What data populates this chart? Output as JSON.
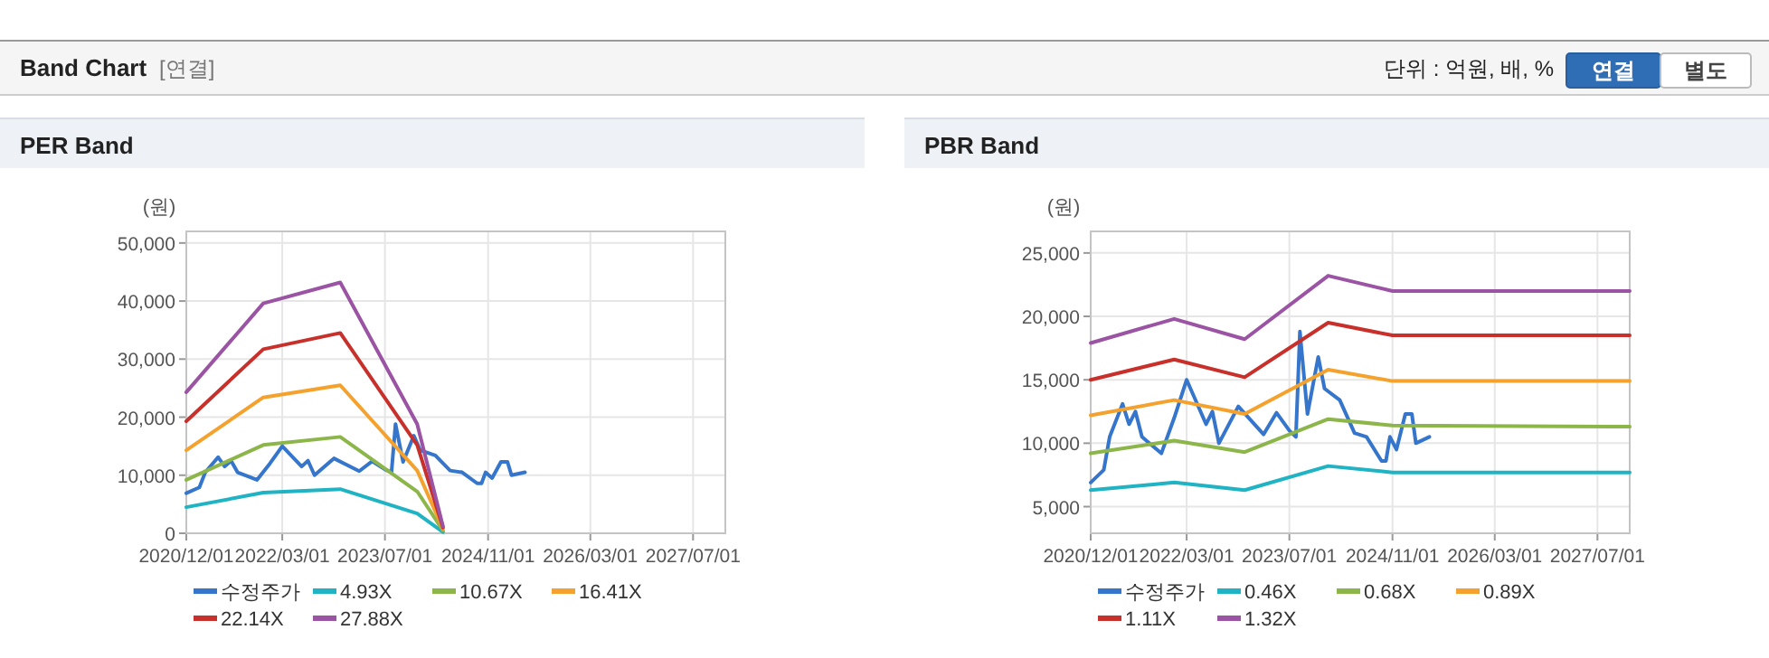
{
  "chart_data": [
    {
      "type": "line",
      "title": "PER Band",
      "ylabel": "(원)",
      "annotations": [
        "Band Chart",
        "[연결]",
        "단위 : 억원, 배, %",
        "연결",
        "별도"
      ],
      "xlim": [
        "2020-12-01",
        "2027-12-01"
      ],
      "xticks": [
        {
          "value": "2020-12-01",
          "label": "2020/12/01"
        },
        {
          "value": "2022-03-01",
          "label": "2022/03/01"
        },
        {
          "value": "2023-07-01",
          "label": "2023/07/01"
        },
        {
          "value": "2024-11-01",
          "label": "2024/11/01"
        },
        {
          "value": "2026-03-01",
          "label": "2026/03/01"
        },
        {
          "value": "2027-07-01",
          "label": "2027/07/01"
        }
      ],
      "ylim": [
        0,
        52000
      ],
      "yticks": [
        {
          "value": 0,
          "label": "0"
        },
        {
          "value": 10000,
          "label": "10,000"
        },
        {
          "value": 20000,
          "label": "20,000"
        },
        {
          "value": 30000,
          "label": "30,000"
        },
        {
          "value": 40000,
          "label": "40,000"
        },
        {
          "value": 50000,
          "label": "50,000"
        }
      ],
      "grid": true,
      "legend": "bottom",
      "series": [
        {
          "name": "수정주가",
          "color": "#3576cc",
          "x": [
            "2020-12-01",
            "2021-02-01",
            "2021-03-01",
            "2021-05-01",
            "2021-06-01",
            "2021-07-01",
            "2021-08-01",
            "2021-11-01",
            "2022-01-01",
            "2022-03-01",
            "2022-06-01",
            "2022-07-01",
            "2022-08-01",
            "2022-11-01",
            "2023-03-01",
            "2023-05-01",
            "2023-07-01",
            "2023-08-01",
            "2023-08-20",
            "2023-09-25",
            "2023-11-15",
            "2023-12-15",
            "2024-02-25",
            "2024-05-05",
            "2024-07-01",
            "2024-09-10",
            "2024-10-01",
            "2024-10-20",
            "2024-11-20",
            "2025-01-01",
            "2025-02-01",
            "2025-02-20",
            "2025-04-25"
          ],
          "values": [
            6900,
            7900,
            10500,
            13100,
            11500,
            12500,
            10500,
            9200,
            12000,
            15000,
            11500,
            12500,
            10000,
            12900,
            10700,
            12400,
            11000,
            10500,
            18800,
            12300,
            16800,
            14300,
            13400,
            10800,
            10500,
            8600,
            8600,
            10500,
            9500,
            12300,
            12300,
            10000,
            10500
          ]
        },
        {
          "name": "4.93X",
          "color": "#1fb3c4",
          "x": [
            "2020-12-01",
            "2021-12-01",
            "2022-12-01",
            "2023-12-01",
            "2024-04-01"
          ],
          "values": [
            4500,
            7000,
            7600,
            3400,
            200
          ]
        },
        {
          "name": "10.67X",
          "color": "#8cb54a",
          "x": [
            "2020-12-01",
            "2021-12-01",
            "2022-12-01",
            "2023-12-01",
            "2024-04-01"
          ],
          "values": [
            9200,
            15200,
            16600,
            7200,
            500
          ]
        },
        {
          "name": "16.41X",
          "color": "#f4a22d",
          "x": [
            "2020-12-01",
            "2021-12-01",
            "2022-12-01",
            "2023-12-01",
            "2024-04-01"
          ],
          "values": [
            14300,
            23400,
            25500,
            10800,
            800
          ]
        },
        {
          "name": "22.14X",
          "color": "#c8302b",
          "x": [
            "2020-12-01",
            "2021-12-01",
            "2022-12-01",
            "2023-12-01",
            "2024-04-01"
          ],
          "values": [
            19300,
            31700,
            34500,
            15200,
            1000
          ]
        },
        {
          "name": "27.88X",
          "color": "#9b53a3",
          "x": [
            "2020-12-01",
            "2021-12-01",
            "2022-12-01",
            "2023-12-01",
            "2024-04-01"
          ],
          "values": [
            24300,
            39600,
            43200,
            18800,
            1200
          ]
        }
      ]
    },
    {
      "type": "line",
      "title": "PBR Band",
      "ylabel": "(원)",
      "xlim": [
        "2020-12-01",
        "2027-12-01"
      ],
      "xticks": [
        {
          "value": "2020-12-01",
          "label": "2020/12/01"
        },
        {
          "value": "2022-03-01",
          "label": "2022/03/01"
        },
        {
          "value": "2023-07-01",
          "label": "2023/07/01"
        },
        {
          "value": "2024-11-01",
          "label": "2024/11/01"
        },
        {
          "value": "2026-03-01",
          "label": "2026/03/01"
        },
        {
          "value": "2027-07-01",
          "label": "2027/07/01"
        }
      ],
      "ylim": [
        2900,
        26700
      ],
      "yticks": [
        {
          "value": 5000,
          "label": "5,000"
        },
        {
          "value": 10000,
          "label": "10,000"
        },
        {
          "value": 15000,
          "label": "15,000"
        },
        {
          "value": 20000,
          "label": "20,000"
        },
        {
          "value": 25000,
          "label": "25,000"
        }
      ],
      "grid": true,
      "legend": "bottom",
      "series": [
        {
          "name": "수정주가",
          "color": "#3576cc",
          "x": [
            "2020-12-01",
            "2021-02-01",
            "2021-03-01",
            "2021-05-01",
            "2021-06-01",
            "2021-07-01",
            "2021-08-01",
            "2021-11-01",
            "2022-01-01",
            "2022-03-01",
            "2022-06-01",
            "2022-07-01",
            "2022-08-01",
            "2022-11-01",
            "2023-03-01",
            "2023-05-01",
            "2023-07-01",
            "2023-08-01",
            "2023-08-20",
            "2023-09-25",
            "2023-11-15",
            "2023-12-15",
            "2024-02-25",
            "2024-05-05",
            "2024-07-01",
            "2024-09-10",
            "2024-10-01",
            "2024-10-20",
            "2024-11-20",
            "2025-01-01",
            "2025-02-01",
            "2025-02-20",
            "2025-04-25"
          ],
          "values": [
            6900,
            7900,
            10500,
            13100,
            11500,
            12500,
            10500,
            9200,
            12000,
            15000,
            11500,
            12500,
            10000,
            12900,
            10700,
            12400,
            11000,
            10500,
            18800,
            12300,
            16800,
            14300,
            13400,
            10800,
            10500,
            8600,
            8600,
            10500,
            9500,
            12300,
            12300,
            10000,
            10500
          ]
        },
        {
          "name": "0.46X",
          "color": "#1fb3c4",
          "x": [
            "2020-12-01",
            "2022-01-01",
            "2022-12-01",
            "2024-01-01",
            "2024-11-01",
            "2027-12-01"
          ],
          "values": [
            6300,
            6900,
            6300,
            8200,
            7700,
            7700
          ]
        },
        {
          "name": "0.68X",
          "color": "#8cb54a",
          "x": [
            "2020-12-01",
            "2022-01-01",
            "2022-12-01",
            "2024-01-01",
            "2024-11-01",
            "2027-12-01"
          ],
          "values": [
            9200,
            10200,
            9300,
            11900,
            11400,
            11300
          ]
        },
        {
          "name": "0.89X",
          "color": "#f4a22d",
          "x": [
            "2020-12-01",
            "2022-01-01",
            "2022-12-01",
            "2024-01-01",
            "2024-11-01",
            "2027-12-01"
          ],
          "values": [
            12200,
            13400,
            12300,
            15800,
            14900,
            14900
          ]
        },
        {
          "name": "1.11X",
          "color": "#c8302b",
          "x": [
            "2020-12-01",
            "2022-01-01",
            "2022-12-01",
            "2024-01-01",
            "2024-11-01",
            "2027-12-01"
          ],
          "values": [
            15000,
            16600,
            15200,
            19500,
            18500,
            18500
          ]
        },
        {
          "name": "1.32X",
          "color": "#9b53a3",
          "x": [
            "2020-12-01",
            "2022-01-01",
            "2022-12-01",
            "2024-01-01",
            "2024-11-01",
            "2027-12-01"
          ],
          "values": [
            17900,
            19800,
            18200,
            23200,
            22000,
            22000
          ]
        }
      ]
    }
  ]
}
